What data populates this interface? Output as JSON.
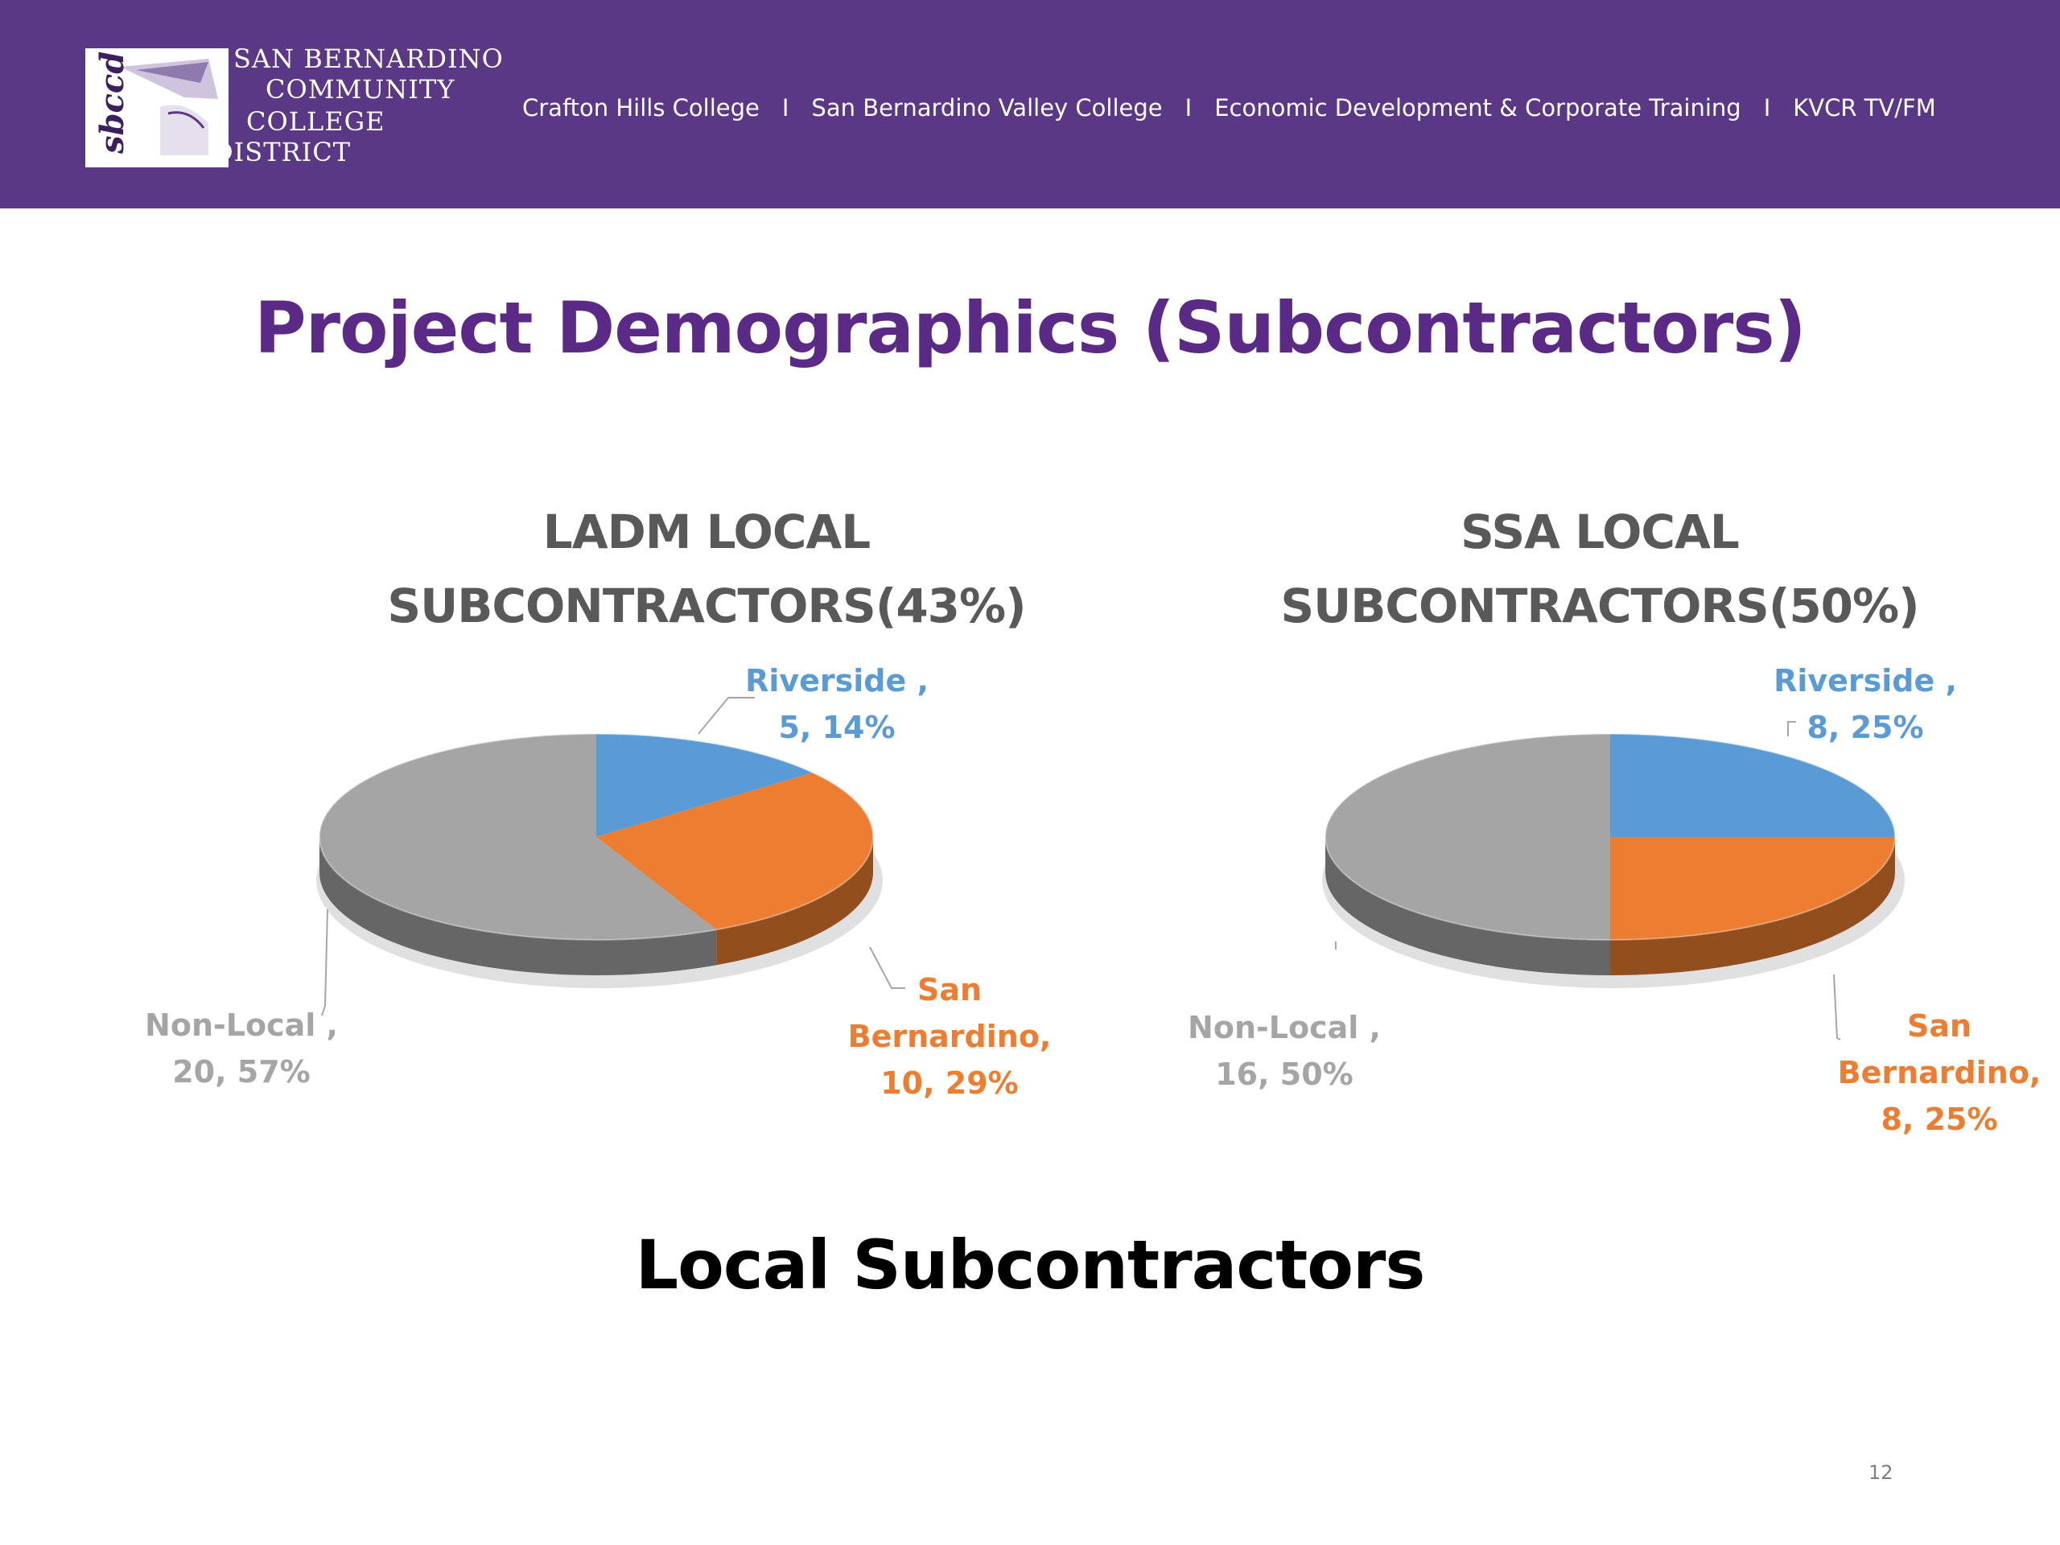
{
  "header": {
    "logo": {
      "monogram": "sbccd",
      "lines": [
        "SAN BERNARDINO",
        "COMMUNITY",
        "COLLEGE",
        "DISTRICT"
      ]
    },
    "nav": [
      "Crafton Hills College",
      "San Bernardino Valley College",
      "Economic Development & Corporate Training",
      "KVCR TV/FM"
    ],
    "separator": "I",
    "background_color": "#5a3886"
  },
  "slide": {
    "title": "Project Demographics (Subcontractors)",
    "caption": "Local Subcontractors",
    "page_number": "12"
  },
  "colors": {
    "Riverside": "#5b9bd5",
    "San Bernardino": "#ed7d31",
    "Non-Local": "#a5a5a5",
    "title": "#5b2a86"
  },
  "chart_data": [
    {
      "type": "pie",
      "style": "3d",
      "title_lines": [
        "LADM LOCAL",
        "SUBCONTRACTORS(43%)"
      ],
      "categories": [
        "Riverside",
        "San Bernardino",
        "Non-Local"
      ],
      "values": [
        5,
        10,
        20
      ],
      "percentages": [
        14,
        29,
        57
      ],
      "label_lines": [
        [
          "Riverside ,",
          "5, 14%"
        ],
        [
          "San",
          "Bernardino,",
          "10, 29%"
        ],
        [
          "Non-Local ,",
          "20, 57%"
        ]
      ]
    },
    {
      "type": "pie",
      "style": "3d",
      "title_lines": [
        "SSA LOCAL",
        "SUBCONTRACTORS(50%)"
      ],
      "categories": [
        "Riverside",
        "San Bernardino",
        "Non-Local"
      ],
      "values": [
        8,
        8,
        16
      ],
      "percentages": [
        25,
        25,
        50
      ],
      "label_lines": [
        [
          "Riverside ,",
          "8, 25%"
        ],
        [
          "San",
          "Bernardino,",
          "8, 25%"
        ],
        [
          "Non-Local ,",
          "16, 50%"
        ]
      ]
    }
  ]
}
